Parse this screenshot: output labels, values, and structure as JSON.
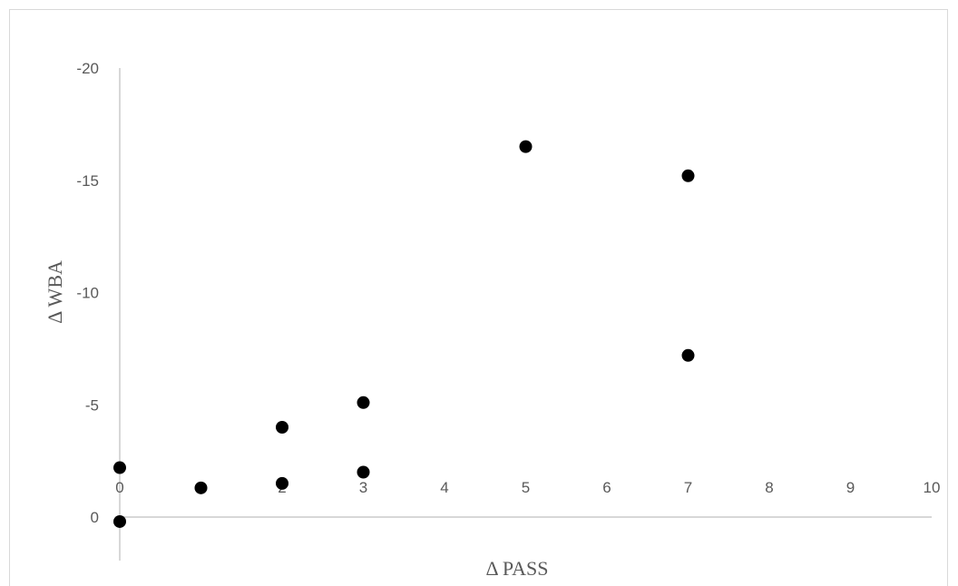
{
  "chart_data": {
    "type": "scatter",
    "title": "",
    "xlabel": "Δ PASS",
    "ylabel": "Δ WBA",
    "xlim": [
      0,
      10
    ],
    "ylim": [
      0,
      -20
    ],
    "y_axis_reversed": true,
    "grid": false,
    "legend": "none",
    "x_ticks": [
      "0",
      "1",
      "2",
      "3",
      "4",
      "5",
      "6",
      "7",
      "8",
      "9",
      "10"
    ],
    "y_ticks": [
      "0",
      "-5",
      "-10",
      "-15",
      "-20"
    ],
    "marker_color": "#000000",
    "axis_color": "#bfbfbf",
    "series": [
      {
        "points": [
          {
            "x": 0,
            "y": -2.2
          },
          {
            "x": 0,
            "y": 0.2
          },
          {
            "x": 1,
            "y": -1.3
          },
          {
            "x": 2,
            "y": -4.0
          },
          {
            "x": 2,
            "y": -1.5
          },
          {
            "x": 3,
            "y": -5.1
          },
          {
            "x": 3,
            "y": -2.0
          },
          {
            "x": 5,
            "y": -16.5
          },
          {
            "x": 7,
            "y": -15.2
          },
          {
            "x": 7,
            "y": -7.2
          }
        ]
      }
    ]
  }
}
